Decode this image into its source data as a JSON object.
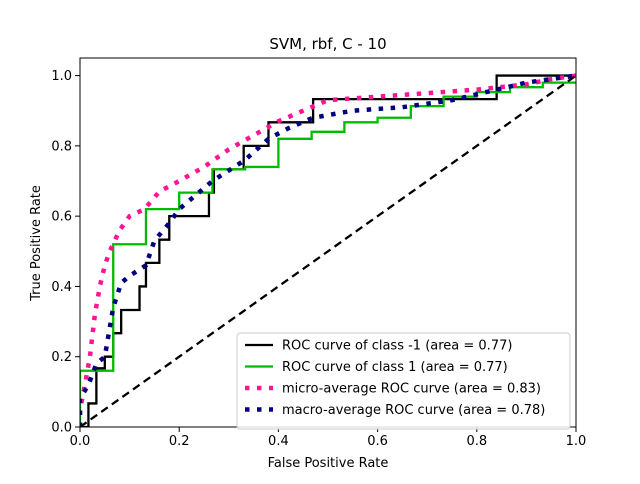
{
  "chart_data": {
    "type": "line",
    "title": "SVM, rbf, C - 10",
    "xlabel": "False Positive Rate",
    "ylabel": "True Positive Rate",
    "xlim": [
      0.0,
      1.0
    ],
    "ylim": [
      0.0,
      1.05
    ],
    "xticks": [
      "0.0",
      "0.2",
      "0.4",
      "0.6",
      "0.8",
      "1.0"
    ],
    "yticks": [
      "0.0",
      "0.2",
      "0.4",
      "0.6",
      "0.8",
      "1.0"
    ],
    "grid": false,
    "legend_position": "lower right",
    "series": [
      {
        "name": "ROC curve of class -1 (area = 0.77)",
        "color": "#000000",
        "style": "solid",
        "step": true,
        "points": [
          [
            0.0,
            0.0
          ],
          [
            0.017,
            0.0
          ],
          [
            0.017,
            0.067
          ],
          [
            0.033,
            0.067
          ],
          [
            0.033,
            0.167
          ],
          [
            0.05,
            0.167
          ],
          [
            0.05,
            0.2
          ],
          [
            0.067,
            0.2
          ],
          [
            0.067,
            0.267
          ],
          [
            0.083,
            0.267
          ],
          [
            0.083,
            0.333
          ],
          [
            0.12,
            0.333
          ],
          [
            0.12,
            0.4
          ],
          [
            0.133,
            0.4
          ],
          [
            0.133,
            0.467
          ],
          [
            0.16,
            0.467
          ],
          [
            0.16,
            0.533
          ],
          [
            0.18,
            0.533
          ],
          [
            0.18,
            0.6
          ],
          [
            0.26,
            0.6
          ],
          [
            0.26,
            0.667
          ],
          [
            0.27,
            0.667
          ],
          [
            0.27,
            0.733
          ],
          [
            0.33,
            0.733
          ],
          [
            0.33,
            0.8
          ],
          [
            0.38,
            0.8
          ],
          [
            0.38,
            0.867
          ],
          [
            0.47,
            0.867
          ],
          [
            0.47,
            0.933
          ],
          [
            0.84,
            0.933
          ],
          [
            0.84,
            1.0
          ],
          [
            1.0,
            1.0
          ]
        ]
      },
      {
        "name": "ROC curve of class 1 (area = 0.77)",
        "color": "#00bb00",
        "style": "solid",
        "step": true,
        "points": [
          [
            0.0,
            0.0
          ],
          [
            0.0,
            0.16
          ],
          [
            0.067,
            0.16
          ],
          [
            0.067,
            0.52
          ],
          [
            0.133,
            0.52
          ],
          [
            0.133,
            0.62
          ],
          [
            0.2,
            0.62
          ],
          [
            0.2,
            0.667
          ],
          [
            0.267,
            0.667
          ],
          [
            0.267,
            0.733
          ],
          [
            0.333,
            0.733
          ],
          [
            0.333,
            0.74
          ],
          [
            0.4,
            0.74
          ],
          [
            0.4,
            0.82
          ],
          [
            0.467,
            0.82
          ],
          [
            0.467,
            0.84
          ],
          [
            0.533,
            0.84
          ],
          [
            0.533,
            0.867
          ],
          [
            0.6,
            0.867
          ],
          [
            0.6,
            0.88
          ],
          [
            0.667,
            0.88
          ],
          [
            0.667,
            0.913
          ],
          [
            0.733,
            0.913
          ],
          [
            0.733,
            0.94
          ],
          [
            0.8,
            0.94
          ],
          [
            0.8,
            0.953
          ],
          [
            0.867,
            0.953
          ],
          [
            0.867,
            0.967
          ],
          [
            0.933,
            0.967
          ],
          [
            0.933,
            0.98
          ],
          [
            1.0,
            0.98
          ]
        ]
      },
      {
        "name": "micro-average ROC curve (area = 0.83)",
        "color": "#ff1493",
        "style": "dotted",
        "step": false,
        "points": [
          [
            0.0,
            0.0
          ],
          [
            0.0,
            0.05
          ],
          [
            0.01,
            0.12
          ],
          [
            0.02,
            0.2
          ],
          [
            0.03,
            0.32
          ],
          [
            0.04,
            0.4
          ],
          [
            0.05,
            0.46
          ],
          [
            0.06,
            0.5
          ],
          [
            0.07,
            0.53
          ],
          [
            0.08,
            0.56
          ],
          [
            0.1,
            0.6
          ],
          [
            0.13,
            0.62
          ],
          [
            0.16,
            0.67
          ],
          [
            0.2,
            0.7
          ],
          [
            0.25,
            0.74
          ],
          [
            0.3,
            0.79
          ],
          [
            0.35,
            0.83
          ],
          [
            0.4,
            0.87
          ],
          [
            0.45,
            0.9
          ],
          [
            0.5,
            0.93
          ],
          [
            0.6,
            0.94
          ],
          [
            0.7,
            0.95
          ],
          [
            0.8,
            0.96
          ],
          [
            0.9,
            0.975
          ],
          [
            0.95,
            0.99
          ],
          [
            1.0,
            1.0
          ]
        ]
      },
      {
        "name": "macro-average ROC curve (area = 0.78)",
        "color": "#000080",
        "style": "dotted",
        "step": false,
        "points": [
          [
            0.0,
            0.0
          ],
          [
            0.0,
            0.08
          ],
          [
            0.017,
            0.12
          ],
          [
            0.033,
            0.18
          ],
          [
            0.05,
            0.2
          ],
          [
            0.067,
            0.34
          ],
          [
            0.083,
            0.41
          ],
          [
            0.1,
            0.43
          ],
          [
            0.133,
            0.46
          ],
          [
            0.15,
            0.53
          ],
          [
            0.18,
            0.58
          ],
          [
            0.2,
            0.62
          ],
          [
            0.267,
            0.7
          ],
          [
            0.3,
            0.73
          ],
          [
            0.333,
            0.76
          ],
          [
            0.38,
            0.82
          ],
          [
            0.42,
            0.85
          ],
          [
            0.47,
            0.88
          ],
          [
            0.55,
            0.9
          ],
          [
            0.65,
            0.91
          ],
          [
            0.75,
            0.93
          ],
          [
            0.84,
            0.96
          ],
          [
            0.9,
            0.98
          ],
          [
            0.95,
            0.99
          ],
          [
            1.0,
            1.0
          ]
        ]
      },
      {
        "name": "",
        "color": "#000000",
        "style": "dashed",
        "step": false,
        "points": [
          [
            0.0,
            0.0
          ],
          [
            1.0,
            1.0
          ]
        ]
      }
    ]
  }
}
